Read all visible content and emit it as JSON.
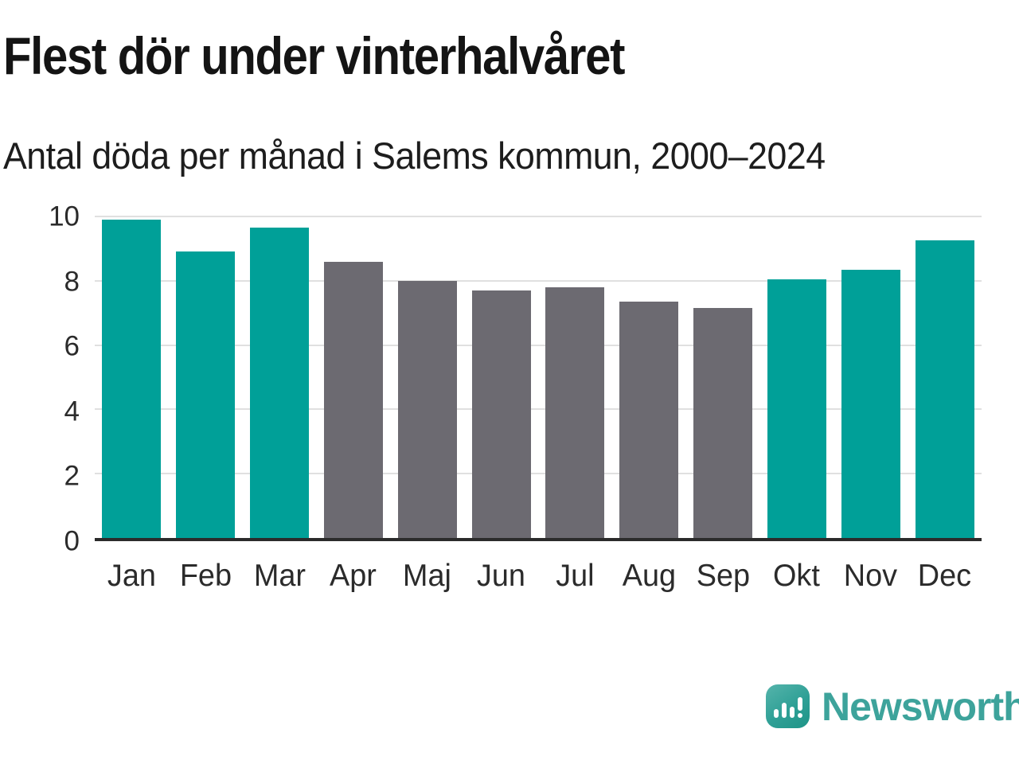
{
  "chart_data": {
    "type": "bar",
    "title": "Flest dör under vinterhalvåret",
    "subtitle": "Antal döda per månad i Salems kommun, 2000–2024",
    "categories": [
      "Jan",
      "Feb",
      "Mar",
      "Apr",
      "Maj",
      "Jun",
      "Jul",
      "Aug",
      "Sep",
      "Okt",
      "Nov",
      "Dec"
    ],
    "values": [
      9.9,
      8.9,
      9.65,
      8.6,
      8.0,
      7.7,
      7.8,
      7.35,
      7.15,
      8.05,
      8.35,
      9.25
    ],
    "bar_groups": [
      "winter",
      "winter",
      "winter",
      "summer",
      "summer",
      "summer",
      "summer",
      "summer",
      "summer",
      "winter",
      "winter",
      "winter"
    ],
    "bar_palette": {
      "winter": "#00a098",
      "summer": "#6c6a71"
    },
    "xlabel": "",
    "ylabel": "",
    "ylim": [
      0,
      10
    ],
    "yticks": [
      0,
      2,
      4,
      6,
      8,
      10
    ],
    "grid": "horizontal",
    "legend": "none",
    "colors": {
      "background": "#ffffff",
      "grid_line": "#e0e0e0",
      "axis_line": "#2b2b2b",
      "tick_label": "#2b2b2b",
      "title_text": "#141414"
    }
  },
  "footer": {
    "logo_text": "Newsworthy",
    "logo_icon": "newsworthy-speech-bubble-bar-chart-icon",
    "logo_color": "#3da39b"
  }
}
